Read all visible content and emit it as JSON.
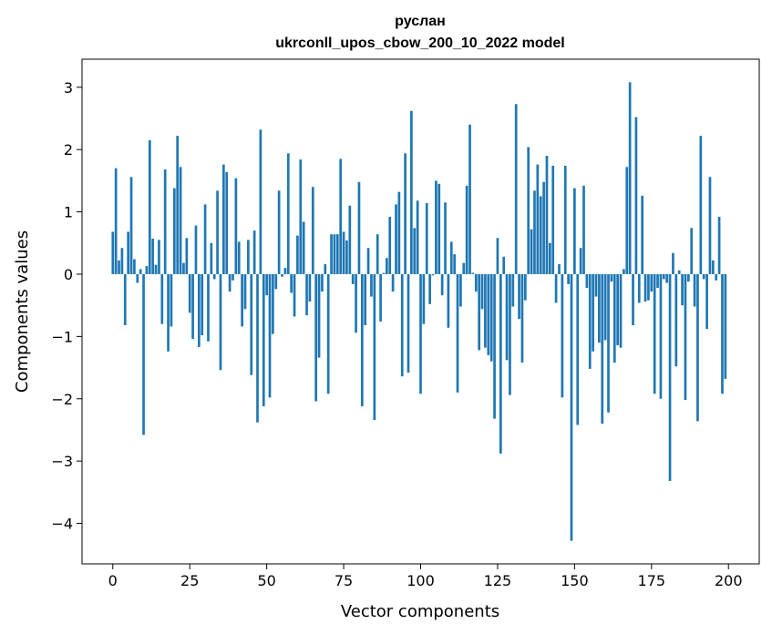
{
  "chart_data": {
    "type": "bar",
    "title_line1": "руслан",
    "title_line2": "ukrconll_upos_cbow_200_10_2022 model",
    "xlabel": "Vector components",
    "ylabel": "Components values",
    "xlim": [
      -10,
      210
    ],
    "ylim": [
      -4.65,
      3.45
    ],
    "xticks": [
      0,
      25,
      50,
      75,
      100,
      125,
      150,
      175,
      200
    ],
    "yticks": [
      -4,
      -3,
      -2,
      -1,
      0,
      1,
      2,
      3
    ],
    "xtick_labels": [
      "0",
      "25",
      "50",
      "75",
      "100",
      "125",
      "150",
      "175",
      "200"
    ],
    "ytick_labels": [
      "−4",
      "−3",
      "−2",
      "−1",
      "0",
      "1",
      "2",
      "3"
    ],
    "bar_color": "#1f77b4",
    "grid": false,
    "x": [
      0,
      1,
      2,
      3,
      4,
      5,
      6,
      7,
      8,
      9,
      10,
      11,
      12,
      13,
      14,
      15,
      16,
      17,
      18,
      19,
      20,
      21,
      22,
      23,
      24,
      25,
      26,
      27,
      28,
      29,
      30,
      31,
      32,
      33,
      34,
      35,
      36,
      37,
      38,
      39,
      40,
      41,
      42,
      43,
      44,
      45,
      46,
      47,
      48,
      49,
      50,
      51,
      52,
      53,
      54,
      55,
      56,
      57,
      58,
      59,
      60,
      61,
      62,
      63,
      64,
      65,
      66,
      67,
      68,
      69,
      70,
      71,
      72,
      73,
      74,
      75,
      76,
      77,
      78,
      79,
      80,
      81,
      82,
      83,
      84,
      85,
      86,
      87,
      88,
      89,
      90,
      91,
      92,
      93,
      94,
      95,
      96,
      97,
      98,
      99,
      100,
      101,
      102,
      103,
      104,
      105,
      106,
      107,
      108,
      109,
      110,
      111,
      112,
      113,
      114,
      115,
      116,
      117,
      118,
      119,
      120,
      121,
      122,
      123,
      124,
      125,
      126,
      127,
      128,
      129,
      130,
      131,
      132,
      133,
      134,
      135,
      136,
      137,
      138,
      139,
      140,
      141,
      142,
      143,
      144,
      145,
      146,
      147,
      148,
      149,
      150,
      151,
      152,
      153,
      154,
      155,
      156,
      157,
      158,
      159,
      160,
      161,
      162,
      163,
      164,
      165,
      166,
      167,
      168,
      169,
      170,
      171,
      172,
      173,
      174,
      175,
      176,
      177,
      178,
      179,
      180,
      181,
      182,
      183,
      184,
      185,
      186,
      187,
      188,
      189,
      190,
      191,
      192,
      193,
      194,
      195,
      196,
      197,
      198,
      199
    ],
    "values": [
      0.68,
      1.7,
      0.22,
      0.42,
      -0.82,
      0.68,
      1.56,
      0.24,
      -0.14,
      0.08,
      -2.58,
      0.13,
      2.15,
      0.57,
      0.15,
      0.55,
      -0.8,
      1.68,
      -1.24,
      -0.84,
      1.38,
      2.22,
      1.72,
      0.18,
      0.58,
      -0.62,
      -1.04,
      0.78,
      -1.17,
      -0.98,
      1.12,
      -1.08,
      0.5,
      -0.08,
      1.34,
      -1.54,
      1.76,
      1.64,
      -0.28,
      -0.1,
      1.54,
      0.52,
      -0.84,
      -0.56,
      0.55,
      -1.62,
      0.7,
      -2.38,
      2.32,
      -2.12,
      -0.34,
      -1.98,
      -0.96,
      -0.24,
      1.34,
      -0.04,
      0.1,
      1.94,
      -0.3,
      -0.68,
      0.62,
      1.84,
      0.84,
      -0.66,
      -0.44,
      1.4,
      -2.04,
      -1.34,
      -0.28,
      0.16,
      -1.92,
      0.64,
      0.64,
      0.64,
      1.85,
      0.68,
      0.54,
      1.1,
      -0.16,
      -0.94,
      1.48,
      -2.12,
      -0.82,
      0.42,
      -0.36,
      -2.34,
      0.64,
      -0.76,
      0.02,
      0.26,
      0.92,
      -0.28,
      1.12,
      1.32,
      -1.64,
      1.94,
      -1.58,
      2.62,
      0.74,
      1.18,
      -1.92,
      -0.8,
      1.14,
      -0.48,
      -0.02,
      1.5,
      1.45,
      -0.34,
      1.15,
      -0.86,
      0.52,
      0.32,
      -1.9,
      -0.52,
      0.18,
      1.42,
      2.4,
      0.02,
      -0.28,
      -1.22,
      -0.56,
      -1.18,
      -1.3,
      -1.4,
      -2.32,
      0.58,
      -2.88,
      0.28,
      -1.38,
      -1.94,
      -0.52,
      2.73,
      -0.72,
      -1.42,
      -0.42,
      2.04,
      0.72,
      1.34,
      1.76,
      1.25,
      1.48,
      1.9,
      0.5,
      1.74,
      -0.46,
      0.16,
      -1.98,
      1.74,
      -0.16,
      -4.28,
      1.38,
      -2.42,
      0.42,
      1.42,
      -0.22,
      -1.52,
      -1.24,
      -0.36,
      -1.1,
      -2.4,
      -1.06,
      -2.22,
      -0.12,
      -1.42,
      -1.14,
      -1.18,
      0.08,
      1.72,
      3.08,
      -0.82,
      2.52,
      -0.46,
      1.26,
      -0.44,
      -0.42,
      -0.28,
      -1.92,
      -0.22,
      -2.0,
      -0.08,
      -0.14,
      -3.32,
      0.34,
      -1.48,
      0.06,
      -0.5,
      -2.02,
      -0.12,
      0.74,
      -0.52,
      -2.36,
      2.22,
      -0.08,
      -0.88,
      1.56,
      0.22,
      -0.1,
      0.92,
      -1.92,
      -1.68
    ]
  }
}
